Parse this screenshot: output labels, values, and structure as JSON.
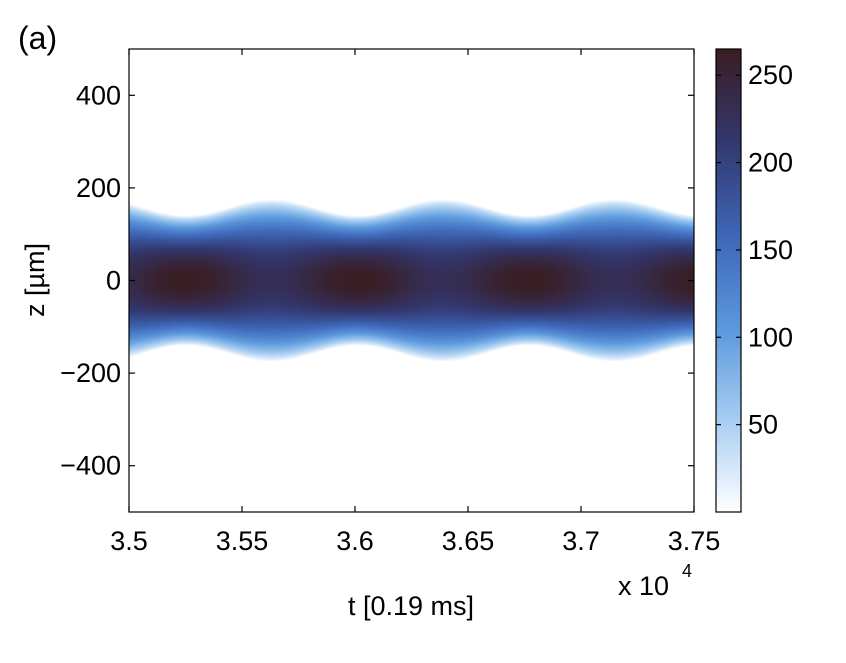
{
  "chart_data": {
    "type": "heatmap",
    "panel_label": "(a)",
    "xlabel": "t [0.19 ms]",
    "ylabel": "z [µm]",
    "x_multiplier": {
      "prefix": "x 10",
      "exponent": "4"
    },
    "xlim": [
      3.5,
      3.75
    ],
    "ylim": [
      -500,
      500
    ],
    "x_ticks": [
      3.5,
      3.55,
      3.6,
      3.65,
      3.7,
      3.75
    ],
    "x_tick_labels": [
      "3.5",
      "3.55",
      "3.6",
      "3.65",
      "3.7",
      "3.75"
    ],
    "y_ticks": [
      400,
      200,
      0,
      -200,
      -400
    ],
    "y_tick_labels": [
      "400",
      "200",
      "0",
      "−200",
      "−400"
    ],
    "colorbar": {
      "range": [
        0,
        265
      ],
      "ticks": [
        250,
        200,
        150,
        100,
        50
      ],
      "tick_labels": [
        "250",
        "200",
        "150",
        "100",
        "50"
      ]
    },
    "density_profile": {
      "peak_value": 265,
      "breathing_period_x": 0.076,
      "peak_centers_x": [
        3.525,
        3.6,
        3.676,
        3.745
      ],
      "min_half_width_um": 140,
      "max_half_width_um": 175
    },
    "colormap": [
      "#ffffff",
      "#a6cdf2",
      "#5b97dc",
      "#3d66b6",
      "#33376e",
      "#3a1d22"
    ],
    "grid": false
  }
}
